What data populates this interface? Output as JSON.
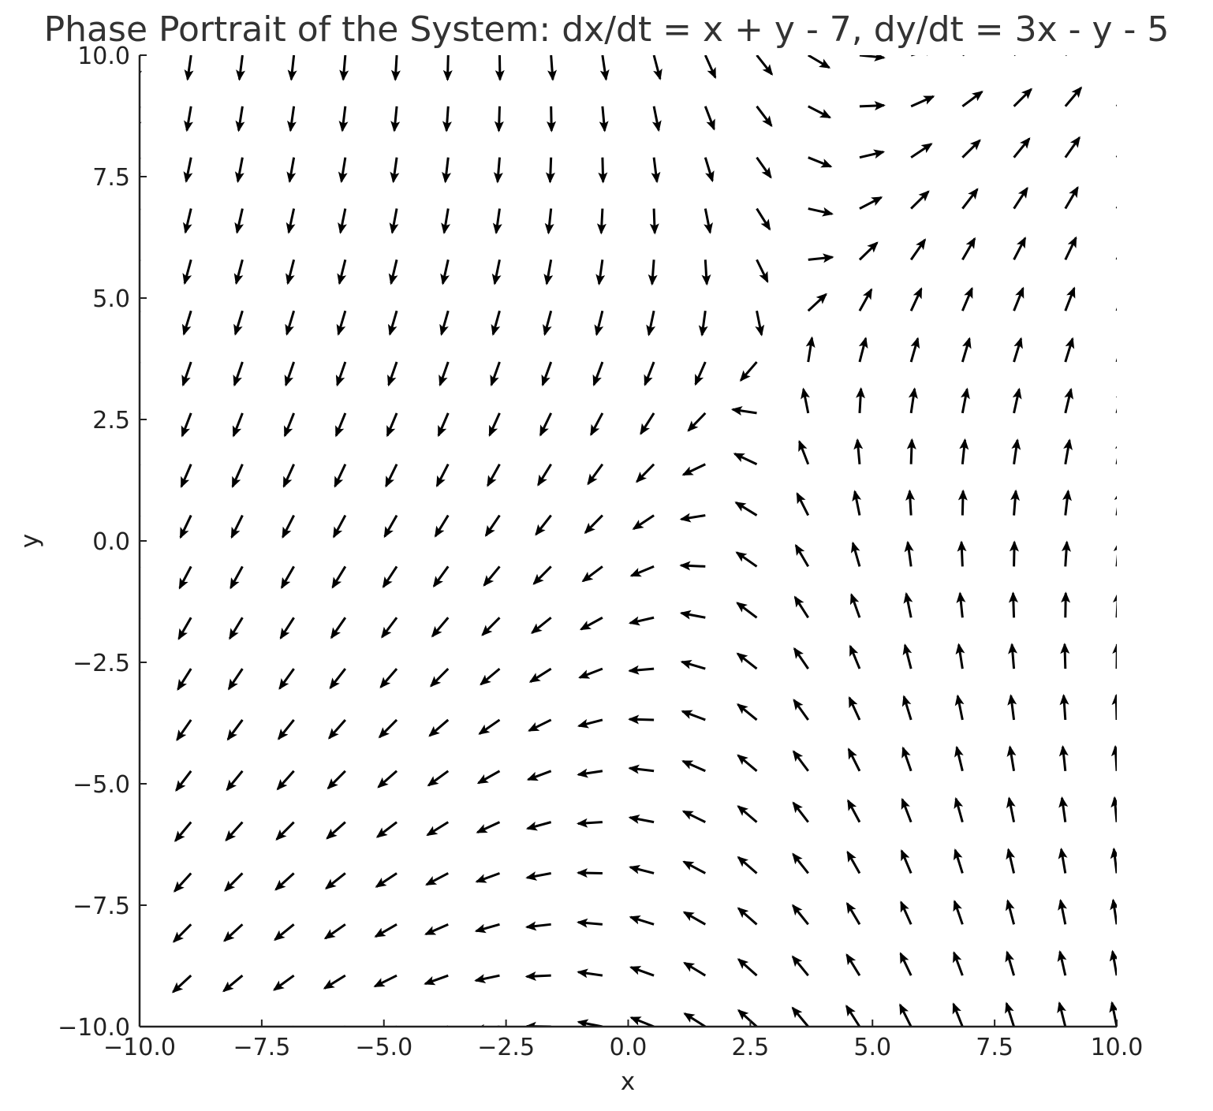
{
  "chart_data": {
    "type": "quiver",
    "title": "Phase Portrait of the System: dx/dt = x + y - 7, dy/dt = 3x - y - 5",
    "xlabel": "x",
    "ylabel": "y",
    "xlim": [
      -10,
      10
    ],
    "ylim": [
      -10,
      10
    ],
    "x_ticks": [
      -10,
      -7.5,
      -5,
      -2.5,
      0,
      2.5,
      5,
      7.5,
      10
    ],
    "y_ticks": [
      -10,
      -7.5,
      -5,
      -2.5,
      0,
      2.5,
      5,
      7.5,
      10
    ],
    "x_tick_labels": [
      "−10.0",
      "−7.5",
      "−5.0",
      "−2.5",
      "0.0",
      "2.5",
      "5.0",
      "7.5",
      "10.0"
    ],
    "y_tick_labels": [
      "−10.0",
      "−7.5",
      "−5.0",
      "−2.5",
      "0.0",
      "2.5",
      "5.0",
      "7.5",
      "10.0"
    ],
    "grid": false,
    "vector_field": {
      "dx_dt": {
        "x": 1,
        "y": 1,
        "const": -7
      },
      "dy_dt": {
        "x": 3,
        "y": -1,
        "const": -5
      },
      "normalized": true,
      "grid_x": {
        "start": -10,
        "stop": 10,
        "count": 20
      },
      "grid_y": {
        "start": -10,
        "stop": 10,
        "count": 20
      }
    },
    "arrow_color": "#000000",
    "axis_color": "#222222"
  }
}
